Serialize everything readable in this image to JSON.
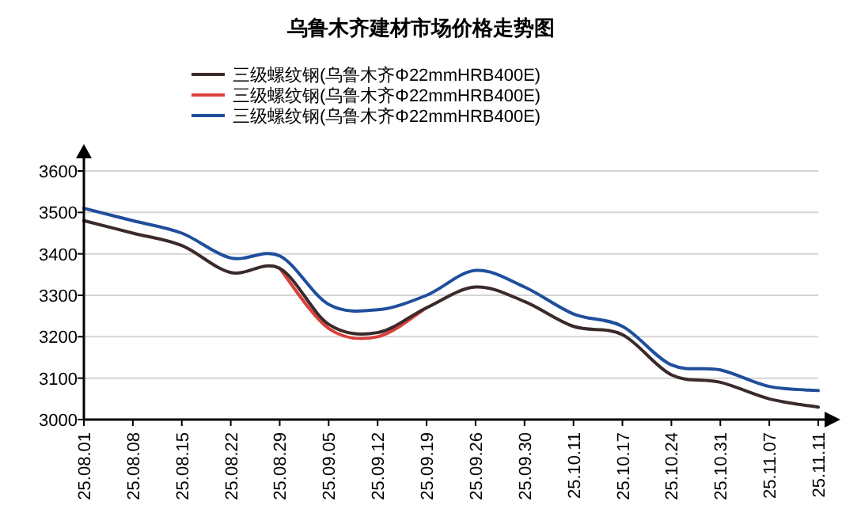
{
  "chart_data": {
    "type": "line",
    "title": "乌鲁木齐建材市场价格走势图",
    "categories": [
      "25.08.01",
      "25.08.08",
      "25.08.15",
      "25.08.22",
      "25.08.29",
      "25.09.05",
      "25.09.12",
      "25.09.19",
      "25.09.26",
      "25.09.30",
      "25.10.11",
      "25.10.17",
      "25.10.24",
      "25.10.31",
      "25.11.07",
      "25.11.11"
    ],
    "series": [
      {
        "name": "三级螺纹钢(乌鲁木齐Φ22mmHRB400E)",
        "color": "#3b2a2a",
        "values": [
          3480,
          3450,
          3420,
          3355,
          3365,
          3230,
          3210,
          3270,
          3320,
          3285,
          3225,
          3205,
          3108,
          3090,
          3050,
          3030
        ]
      },
      {
        "name": "三级螺纹钢(乌鲁木齐Φ22mmHRB400E)",
        "color": "#d9403a",
        "values": [
          null,
          null,
          null,
          null,
          3365,
          3220,
          3200,
          3270,
          null,
          null,
          null,
          null,
          null,
          null,
          null,
          null
        ]
      },
      {
        "name": "三级螺纹钢(乌鲁木齐Φ22mmHRB400E)",
        "color": "#1f4e9c",
        "values": [
          3510,
          3480,
          3450,
          3390,
          3395,
          3278,
          3265,
          3300,
          3360,
          3320,
          3255,
          3225,
          3132,
          3120,
          3080,
          3070
        ]
      }
    ],
    "ylim": [
      3000,
      3600
    ],
    "yticks": [
      3000,
      3100,
      3200,
      3300,
      3400,
      3500,
      3600
    ],
    "grid": "y",
    "legend": "top",
    "marker": "none",
    "line_style": "solid"
  }
}
